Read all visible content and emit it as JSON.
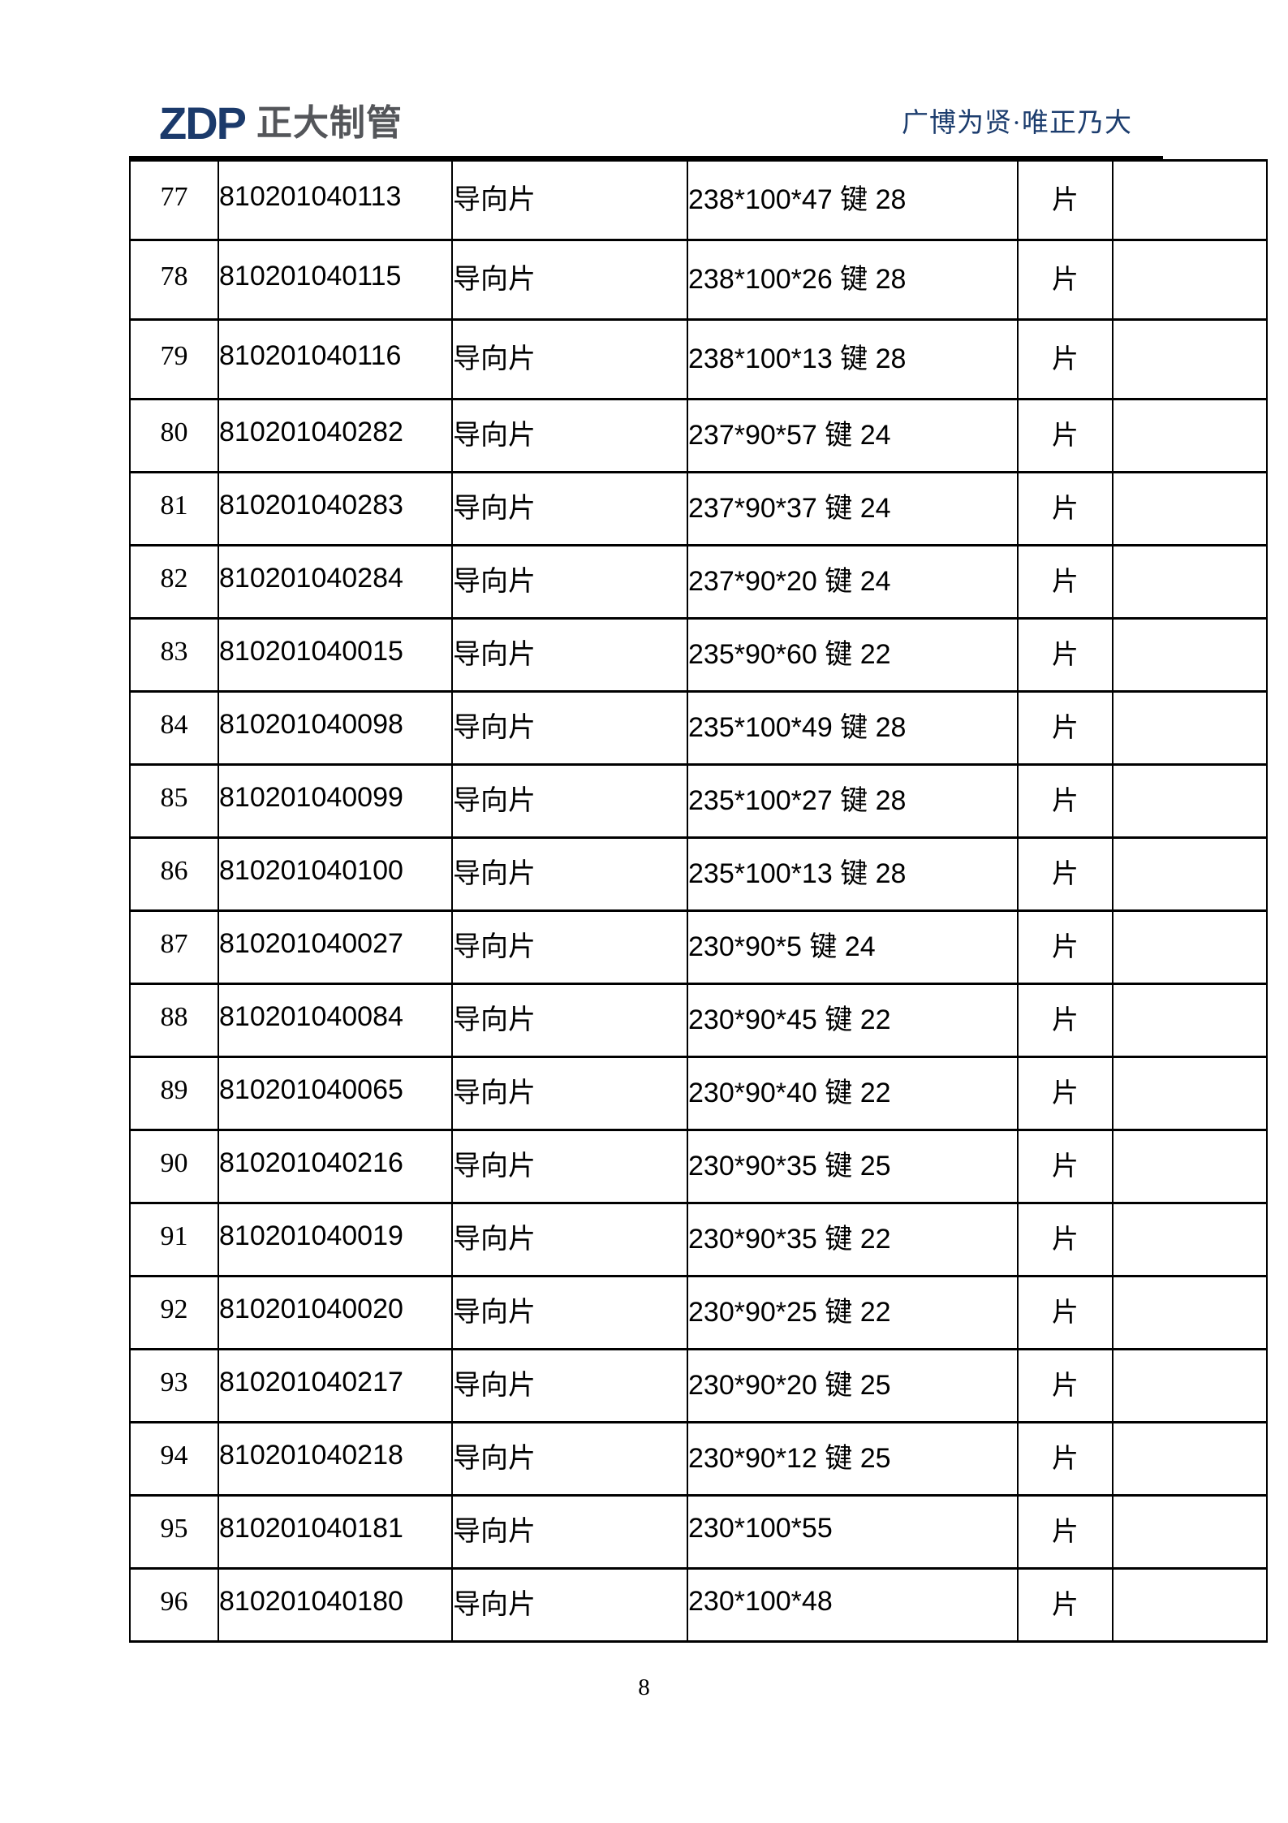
{
  "header": {
    "logo_text": "ZDP",
    "logo_cn": "正大制管",
    "slogan": "广博为贤·唯正乃大",
    "logo_color": "#1b3a6b",
    "logo_cn_color": "#54565a",
    "slogan_color": "#1c3d6e"
  },
  "table": {
    "rows": [
      {
        "no": "77",
        "code": "810201040113",
        "name": "导向片",
        "spec": "238*100*47 键 28",
        "unit": "片",
        "note": ""
      },
      {
        "no": "78",
        "code": "810201040115",
        "name": "导向片",
        "spec": "238*100*26 键 28",
        "unit": "片",
        "note": ""
      },
      {
        "no": "79",
        "code": "810201040116",
        "name": "导向片",
        "spec": "238*100*13 键 28",
        "unit": "片",
        "note": ""
      },
      {
        "no": "80",
        "code": "810201040282",
        "name": "导向片",
        "spec": "237*90*57 键 24",
        "unit": "片",
        "note": ""
      },
      {
        "no": "81",
        "code": "810201040283",
        "name": "导向片",
        "spec": "237*90*37 键 24",
        "unit": "片",
        "note": ""
      },
      {
        "no": "82",
        "code": "810201040284",
        "name": "导向片",
        "spec": "237*90*20 键 24",
        "unit": "片",
        "note": ""
      },
      {
        "no": "83",
        "code": "810201040015",
        "name": "导向片",
        "spec": "235*90*60 键 22",
        "unit": "片",
        "note": ""
      },
      {
        "no": "84",
        "code": "810201040098",
        "name": "导向片",
        "spec": "235*100*49 键 28",
        "unit": "片",
        "note": ""
      },
      {
        "no": "85",
        "code": "810201040099",
        "name": "导向片",
        "spec": "235*100*27 键 28",
        "unit": "片",
        "note": ""
      },
      {
        "no": "86",
        "code": "810201040100",
        "name": "导向片",
        "spec": "235*100*13 键 28",
        "unit": "片",
        "note": ""
      },
      {
        "no": "87",
        "code": "810201040027",
        "name": "导向片",
        "spec": "230*90*5 键 24",
        "unit": "片",
        "note": ""
      },
      {
        "no": "88",
        "code": "810201040084",
        "name": "导向片",
        "spec": "230*90*45 键 22",
        "unit": "片",
        "note": ""
      },
      {
        "no": "89",
        "code": "810201040065",
        "name": "导向片",
        "spec": "230*90*40 键 22",
        "unit": "片",
        "note": ""
      },
      {
        "no": "90",
        "code": "810201040216",
        "name": "导向片",
        "spec": "230*90*35 键 25",
        "unit": "片",
        "note": ""
      },
      {
        "no": "91",
        "code": "810201040019",
        "name": "导向片",
        "spec": "230*90*35 键 22",
        "unit": "片",
        "note": ""
      },
      {
        "no": "92",
        "code": "810201040020",
        "name": "导向片",
        "spec": "230*90*25 键 22",
        "unit": "片",
        "note": ""
      },
      {
        "no": "93",
        "code": "810201040217",
        "name": "导向片",
        "spec": "230*90*20 键 25",
        "unit": "片",
        "note": ""
      },
      {
        "no": "94",
        "code": "810201040218",
        "name": "导向片",
        "spec": "230*90*12 键 25",
        "unit": "片",
        "note": ""
      },
      {
        "no": "95",
        "code": "810201040181",
        "name": "导向片",
        "spec": "230*100*55",
        "unit": "片",
        "note": ""
      },
      {
        "no": "96",
        "code": "810201040180",
        "name": "导向片",
        "spec": "230*100*48",
        "unit": "片",
        "note": ""
      }
    ]
  },
  "footer": {
    "page_number": "8"
  }
}
